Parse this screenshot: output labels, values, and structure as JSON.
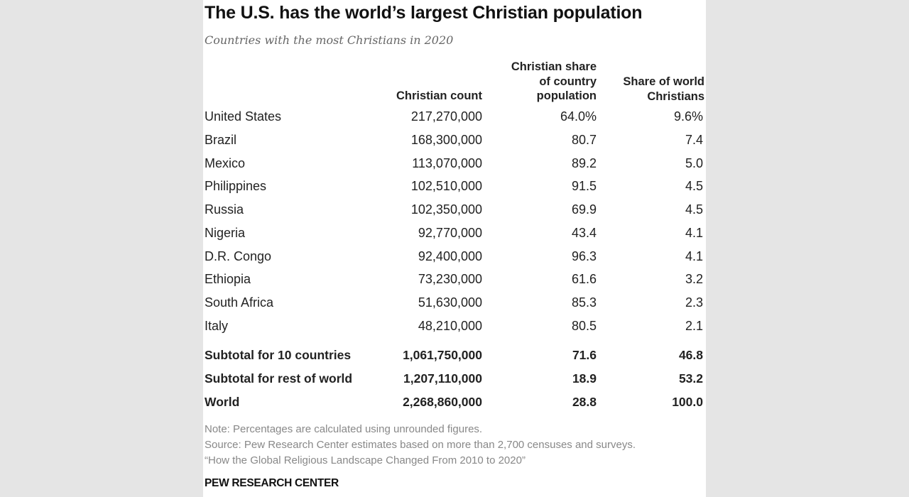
{
  "title": "The U.S. has the world’s largest Christian population",
  "subtitle": "Countries with the most Christians in 2020",
  "headers": {
    "count": "Christian count",
    "share_country": [
      "Christian share",
      "of country",
      "population"
    ],
    "share_world": [
      "Share of world",
      "Christians"
    ]
  },
  "rows": [
    {
      "country": "United States",
      "count": "217,270,000",
      "share_country": "64.0%",
      "share_world": "9.6%"
    },
    {
      "country": "Brazil",
      "count": "168,300,000",
      "share_country": "80.7",
      "share_world": "7.4"
    },
    {
      "country": "Mexico",
      "count": "113,070,000",
      "share_country": "89.2",
      "share_world": "5.0"
    },
    {
      "country": "Philippines",
      "count": "102,510,000",
      "share_country": "91.5",
      "share_world": "4.5"
    },
    {
      "country": "Russia",
      "count": "102,350,000",
      "share_country": "69.9",
      "share_world": "4.5"
    },
    {
      "country": "Nigeria",
      "count": "92,770,000",
      "share_country": "43.4",
      "share_world": "4.1"
    },
    {
      "country": "D.R. Congo",
      "count": "92,400,000",
      "share_country": "96.3",
      "share_world": "4.1"
    },
    {
      "country": "Ethiopia",
      "count": "73,230,000",
      "share_country": "61.6",
      "share_world": "3.2"
    },
    {
      "country": "South Africa",
      "count": "51,630,000",
      "share_country": "85.3",
      "share_world": "2.3"
    },
    {
      "country": "Italy",
      "count": "48,210,000",
      "share_country": "80.5",
      "share_world": "2.1"
    }
  ],
  "totals": [
    {
      "country": "Subtotal for 10 countries",
      "count": "1,061,750,000",
      "share_country": "71.6",
      "share_world": "46.8"
    },
    {
      "country": "Subtotal for rest of world",
      "count": "1,207,110,000",
      "share_country": "18.9",
      "share_world": "53.2"
    },
    {
      "country": "World",
      "count": "2,268,860,000",
      "share_country": "28.8",
      "share_world": "100.0"
    }
  ],
  "notes": [
    "Note: Percentages are calculated using unrounded figures.",
    "Source: Pew Research Center estimates based on more than 2,700 censuses and surveys.",
    "“How the Global Religious Landscape Changed From 2010 to 2020”"
  ],
  "brand": "PEW RESEARCH CENTER"
}
